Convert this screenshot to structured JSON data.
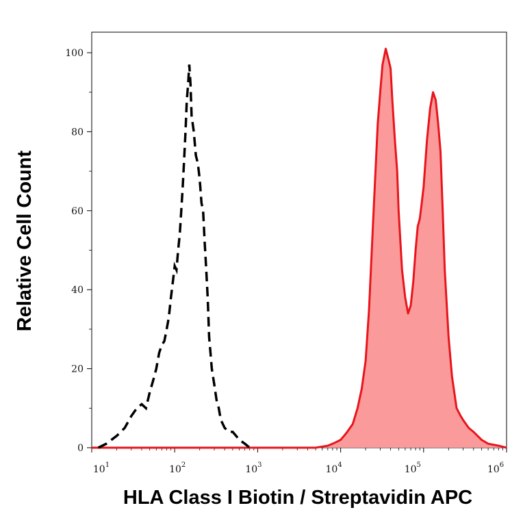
{
  "chart_data": {
    "type": "area",
    "title": "",
    "xlabel": "HLA Class I Biotin / Streptavidin APC",
    "ylabel": "Relative Cell Count",
    "x_scale": "log",
    "xlim": [
      10,
      1000000
    ],
    "ylim": [
      0,
      100
    ],
    "grid": false,
    "legend": "none",
    "x_ticks": [
      {
        "base": "10",
        "exp": "1"
      },
      {
        "base": "10",
        "exp": "2"
      },
      {
        "base": "10",
        "exp": "3"
      },
      {
        "base": "10",
        "exp": "4"
      },
      {
        "base": "10",
        "exp": "5"
      },
      {
        "base": "10",
        "exp": "6"
      }
    ],
    "y_ticks": [
      "0",
      "20",
      "40",
      "60",
      "80",
      "100"
    ],
    "series": [
      {
        "style": "dashed-line",
        "color": "#000000",
        "x": [
          12,
          15,
          20,
          25,
          30,
          35,
          40,
          45,
          50,
          55,
          60,
          65,
          70,
          75,
          80,
          85,
          90,
          95,
          100,
          105,
          110,
          115,
          120,
          125,
          130,
          135,
          140,
          145,
          150,
          155,
          160,
          170,
          180,
          190,
          200,
          210,
          220,
          230,
          240,
          250,
          260,
          270,
          280,
          300,
          320,
          340,
          360,
          380,
          400,
          450,
          500,
          550,
          600,
          700,
          800
        ],
        "y": [
          0,
          1,
          3,
          5,
          8,
          10,
          11,
          10,
          14,
          17,
          20,
          24,
          26,
          27,
          30,
          33,
          38,
          42,
          46,
          45,
          50,
          54,
          60,
          66,
          73,
          80,
          88,
          92,
          97,
          92,
          84,
          80,
          74,
          72,
          68,
          62,
          60,
          52,
          45,
          38,
          28,
          24,
          20,
          16,
          12,
          10,
          7,
          6,
          5,
          4,
          4,
          3,
          2,
          1,
          0
        ]
      },
      {
        "style": "filled-area",
        "color": "#e8141c",
        "fill": "#fb9a9a",
        "x": [
          3000,
          5000,
          7000,
          8000,
          9000,
          10000,
          11000,
          12000,
          14000,
          16000,
          18000,
          20000,
          22000,
          25000,
          28000,
          30000,
          32000,
          35000,
          38000,
          40000,
          42000,
          45000,
          48000,
          50000,
          55000,
          60000,
          65000,
          70000,
          75000,
          80000,
          85000,
          90000,
          95000,
          100000,
          110000,
          120000,
          130000,
          140000,
          150000,
          160000,
          170000,
          180000,
          200000,
          220000,
          250000,
          280000,
          300000,
          350000,
          400000,
          500000,
          600000,
          800000,
          1000000
        ],
        "y": [
          0,
          0,
          0.5,
          1,
          1.5,
          2,
          3,
          4,
          6,
          10,
          15,
          22,
          35,
          60,
          82,
          90,
          97,
          101,
          98,
          96,
          88,
          78,
          70,
          60,
          45,
          38,
          34,
          36,
          42,
          50,
          56,
          58,
          62,
          66,
          78,
          86,
          90,
          88,
          82,
          75,
          60,
          45,
          28,
          18,
          10,
          8,
          7,
          5,
          4,
          2,
          1,
          0.5,
          0
        ]
      }
    ]
  }
}
